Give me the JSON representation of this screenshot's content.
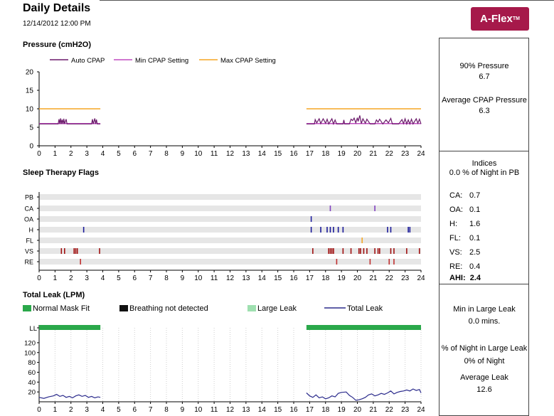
{
  "header": {
    "title": "Daily Details",
    "date": "12/14/2012 12:00 PM",
    "logo": "A-Flex",
    "logo_mark": "TM"
  },
  "sections": {
    "pressure": "Pressure (cmH2O)",
    "flags": "Sleep Therapy Flags",
    "leak": "Total Leak (LPM)"
  },
  "x_ticks": [
    "0",
    "1",
    "2",
    "3",
    "4",
    "5",
    "6",
    "7",
    "8",
    "9",
    "10",
    "11",
    "12",
    "13",
    "14",
    "15",
    "16",
    "17",
    "18",
    "19",
    "20",
    "21",
    "22",
    "23",
    "24"
  ],
  "side_panel": {
    "pressure": {
      "p90_label": "90% Pressure",
      "p90_value": "6.7",
      "avg_label": "Average CPAP Pressure",
      "avg_value": "6.3"
    },
    "indices": {
      "title": "Indices",
      "pb": "0.0 % of Night in PB",
      "rows": [
        {
          "label": "CA:",
          "value": "0.7"
        },
        {
          "label": "OA:",
          "value": "0.1"
        },
        {
          "label": "H:",
          "value": "1.6"
        },
        {
          "label": "FL:",
          "value": "0.1"
        },
        {
          "label": "VS:",
          "value": "2.5"
        },
        {
          "label": "RE:",
          "value": "0.4"
        }
      ],
      "ahi_label": "AHI:",
      "ahi_value": "2.4"
    },
    "leak": {
      "min_label": "Min in Large Leak",
      "min_value": "0.0 mins.",
      "pct_label": "% of Night in Large Leak",
      "pct_value": "0% of Night",
      "avg_label": "Average Leak",
      "avg_value": "12.6"
    }
  },
  "chart_data": [
    {
      "type": "line",
      "title": "Pressure (cmH2O)",
      "xlim": [
        0,
        24
      ],
      "ylim": [
        0,
        20
      ],
      "y_ticks": [
        "0",
        "5",
        "10",
        "15",
        "20"
      ],
      "grid": false,
      "legend_position": "top",
      "colors": {
        "auto": "#6b1a6b",
        "min": "#c04cc0",
        "max": "#f5a623"
      },
      "series": [
        {
          "name": "Auto CPAP",
          "segments": [
            [
              [
                0,
                5.9
              ],
              [
                1.2,
                5.9
              ],
              [
                1.25,
                7.2
              ],
              [
                1.3,
                5.9
              ],
              [
                1.35,
                7.4
              ],
              [
                1.4,
                5.9
              ],
              [
                1.45,
                7.1
              ],
              [
                1.5,
                5.9
              ],
              [
                1.55,
                7.3
              ],
              [
                1.6,
                5.9
              ],
              [
                1.7,
                7.2
              ],
              [
                1.75,
                5.9
              ],
              [
                3.3,
                5.9
              ],
              [
                3.35,
                7.2
              ],
              [
                3.4,
                5.9
              ],
              [
                3.5,
                7.4
              ],
              [
                3.55,
                5.9
              ],
              [
                3.6,
                7.1
              ],
              [
                3.65,
                5.9
              ],
              [
                3.85,
                5.9
              ]
            ],
            [
              [
                16.8,
                5.9
              ],
              [
                17.3,
                5.9
              ],
              [
                17.35,
                7.1
              ],
              [
                17.45,
                6.2
              ],
              [
                17.6,
                7.3
              ],
              [
                17.7,
                6.0
              ],
              [
                17.85,
                7.3
              ],
              [
                18.0,
                6.1
              ],
              [
                18.1,
                7.2
              ],
              [
                18.2,
                5.9
              ],
              [
                18.4,
                7.3
              ],
              [
                18.5,
                5.9
              ],
              [
                18.6,
                7.0
              ],
              [
                18.7,
                5.9
              ],
              [
                19.1,
                5.9
              ],
              [
                19.15,
                7.0
              ],
              [
                19.2,
                5.9
              ],
              [
                19.5,
                5.9
              ],
              [
                19.6,
                7.2
              ],
              [
                19.7,
                6.8
              ],
              [
                19.8,
                7.5
              ],
              [
                19.9,
                6.2
              ],
              [
                20.0,
                7.6
              ],
              [
                20.05,
                6.6
              ],
              [
                20.15,
                8.2
              ],
              [
                20.25,
                6.0
              ],
              [
                20.35,
                7.3
              ],
              [
                20.5,
                6.1
              ],
              [
                20.6,
                7.2
              ],
              [
                20.8,
                5.9
              ],
              [
                21.1,
                5.9
              ],
              [
                21.2,
                7.0
              ],
              [
                21.3,
                6.4
              ],
              [
                21.4,
                7.2
              ],
              [
                21.6,
                5.9
              ],
              [
                21.8,
                7.0
              ],
              [
                21.95,
                6.2
              ],
              [
                22.1,
                7.4
              ],
              [
                22.2,
                5.9
              ],
              [
                22.6,
                5.9
              ],
              [
                22.8,
                7.1
              ],
              [
                22.9,
                6.0
              ],
              [
                23.0,
                7.3
              ],
              [
                23.1,
                5.9
              ],
              [
                23.2,
                7.0
              ],
              [
                23.3,
                5.9
              ],
              [
                23.4,
                7.2
              ],
              [
                23.5,
                5.9
              ],
              [
                23.7,
                7.3
              ],
              [
                23.8,
                6.1
              ],
              [
                23.9,
                7.2
              ],
              [
                24,
                5.9
              ]
            ]
          ]
        },
        {
          "name": "Min CPAP Setting",
          "segments": [
            [
              [
                0,
                6
              ],
              [
                3.85,
                6
              ]
            ],
            [
              [
                16.8,
                6
              ],
              [
                24,
                6
              ]
            ]
          ]
        },
        {
          "name": "Max CPAP Setting",
          "segments": [
            [
              [
                0,
                10
              ],
              [
                3.85,
                10
              ]
            ],
            [
              [
                16.8,
                10
              ],
              [
                24,
                10
              ]
            ]
          ]
        }
      ]
    },
    {
      "type": "scatter",
      "title": "Sleep Therapy Flags",
      "xlim": [
        0,
        24
      ],
      "categories": [
        "PB",
        "CA",
        "OA",
        "H",
        "FL",
        "VS",
        "RE"
      ],
      "colors": {
        "PB": "#7030a0",
        "CA": "#8040c0",
        "OA": "#2020a0",
        "H": "#1a1a9a",
        "FL": "#f5a623",
        "VS": "#a01010",
        "RE": "#c03030"
      },
      "events": {
        "PB": [],
        "CA": [
          18.3,
          21.1
        ],
        "OA": [
          17.1
        ],
        "H": [
          2.8,
          17.1,
          17.7,
          18.1,
          18.3,
          18.5,
          18.8,
          19.1,
          21.9,
          22.1,
          23.2,
          23.3
        ],
        "FL": [
          20.3
        ],
        "VS": [
          1.4,
          1.6,
          2.2,
          2.3,
          2.4,
          3.8,
          17.2,
          18.2,
          18.3,
          18.4,
          18.5,
          19.1,
          19.6,
          20.1,
          20.2,
          20.4,
          20.6,
          21.1,
          21.3,
          21.4,
          22.1,
          22.3,
          23.1,
          23.9
        ],
        "RE": [
          2.6,
          18.7,
          20.8,
          22.0,
          22.3
        ]
      }
    },
    {
      "type": "line",
      "title": "Total Leak (LPM)",
      "xlim": [
        0,
        24
      ],
      "ylim": [
        0,
        130
      ],
      "y_ticks": [
        "20",
        "40",
        "60",
        "80",
        "100",
        "120"
      ],
      "top_label": "LL",
      "legend_position": "top",
      "legend": [
        {
          "name": "Normal Mask Fit",
          "color": "#2aa84a"
        },
        {
          "name": "Breathing not detected",
          "color": "#111111"
        },
        {
          "name": "Large Leak",
          "color": "#9fe0b0"
        },
        {
          "name": "Total Leak",
          "color": "#2b2b8c"
        }
      ],
      "normal_mask_fit": [
        [
          0,
          3.85
        ],
        [
          16.8,
          24
        ]
      ],
      "series": [
        {
          "name": "Total Leak",
          "segments": [
            [
              [
                0,
                9
              ],
              [
                0.3,
                7
              ],
              [
                0.6,
                10
              ],
              [
                0.9,
                12
              ],
              [
                1.1,
                15
              ],
              [
                1.3,
                11
              ],
              [
                1.5,
                13
              ],
              [
                1.7,
                9
              ],
              [
                1.9,
                11
              ],
              [
                2.1,
                8
              ],
              [
                2.3,
                12
              ],
              [
                2.5,
                14
              ],
              [
                2.7,
                11
              ],
              [
                2.9,
                13
              ],
              [
                3.1,
                9
              ],
              [
                3.3,
                11
              ],
              [
                3.5,
                8
              ],
              [
                3.7,
                10
              ],
              [
                3.85,
                9
              ]
            ],
            [
              [
                16.8,
                18
              ],
              [
                17.0,
                12
              ],
              [
                17.2,
                9
              ],
              [
                17.4,
                14
              ],
              [
                17.6,
                8
              ],
              [
                17.8,
                10
              ],
              [
                18.0,
                6
              ],
              [
                18.2,
                8
              ],
              [
                18.4,
                12
              ],
              [
                18.6,
                10
              ],
              [
                18.8,
                17
              ],
              [
                19.0,
                19
              ],
              [
                19.3,
                20
              ],
              [
                19.5,
                13
              ],
              [
                19.7,
                9
              ],
              [
                19.9,
                3
              ],
              [
                20.1,
                4
              ],
              [
                20.3,
                6
              ],
              [
                20.5,
                9
              ],
              [
                20.7,
                14
              ],
              [
                20.9,
                16
              ],
              [
                21.1,
                12
              ],
              [
                21.3,
                14
              ],
              [
                21.5,
                17
              ],
              [
                21.7,
                15
              ],
              [
                21.9,
                18
              ],
              [
                22.1,
                22
              ],
              [
                22.3,
                16
              ],
              [
                22.5,
                19
              ],
              [
                22.7,
                21
              ],
              [
                22.9,
                22
              ],
              [
                23.1,
                24
              ],
              [
                23.3,
                22
              ],
              [
                23.5,
                26
              ],
              [
                23.7,
                23
              ],
              [
                23.9,
                25
              ],
              [
                24,
                18
              ]
            ]
          ]
        }
      ]
    }
  ]
}
